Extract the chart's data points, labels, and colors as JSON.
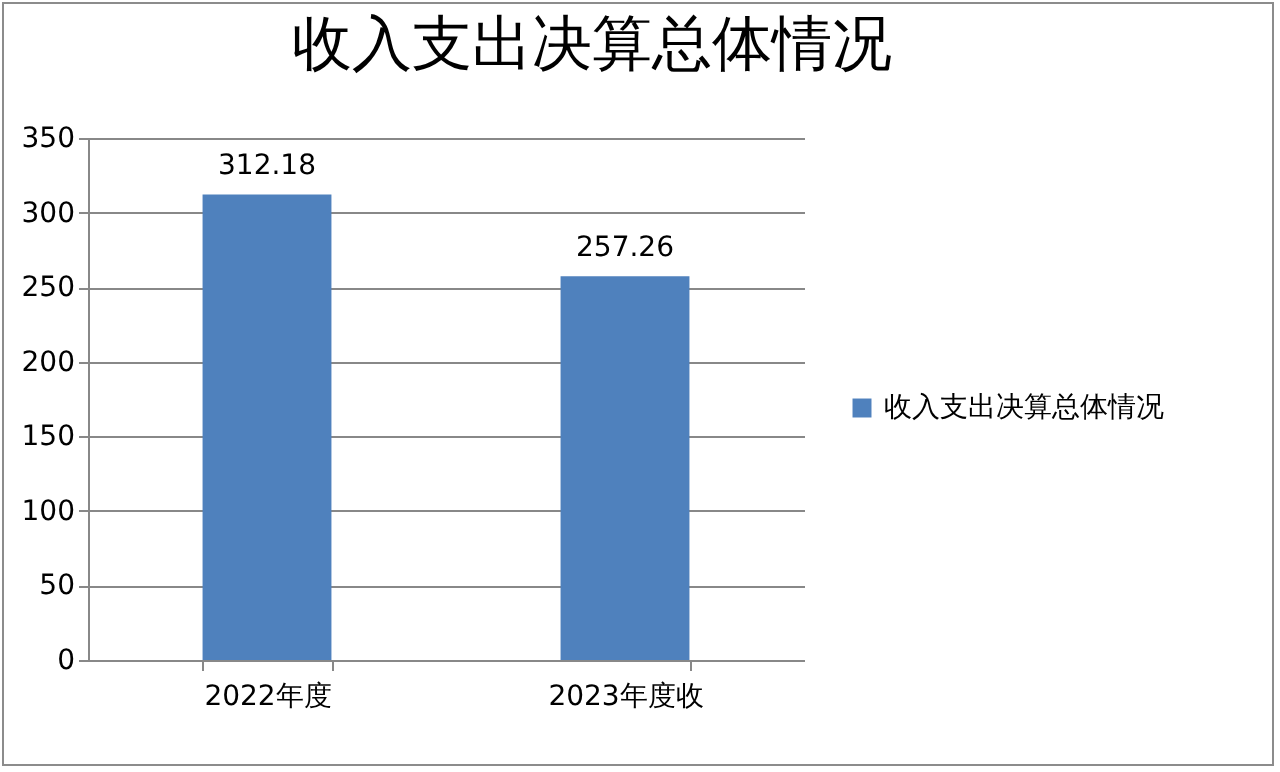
{
  "chart_data": {
    "type": "bar",
    "title": "收入支出决算总体情况",
    "categories": [
      "2022年度",
      "2023年度收"
    ],
    "series": [
      {
        "name": "收入支出决算总体情况",
        "color": "#4f81bd",
        "values": [
          312.18,
          257.26
        ]
      }
    ],
    "ylim": [
      0,
      350
    ],
    "yticks": [
      0,
      50,
      100,
      150,
      200,
      250,
      300,
      350
    ],
    "grid": "y",
    "legend": "right",
    "data_labels": true
  }
}
